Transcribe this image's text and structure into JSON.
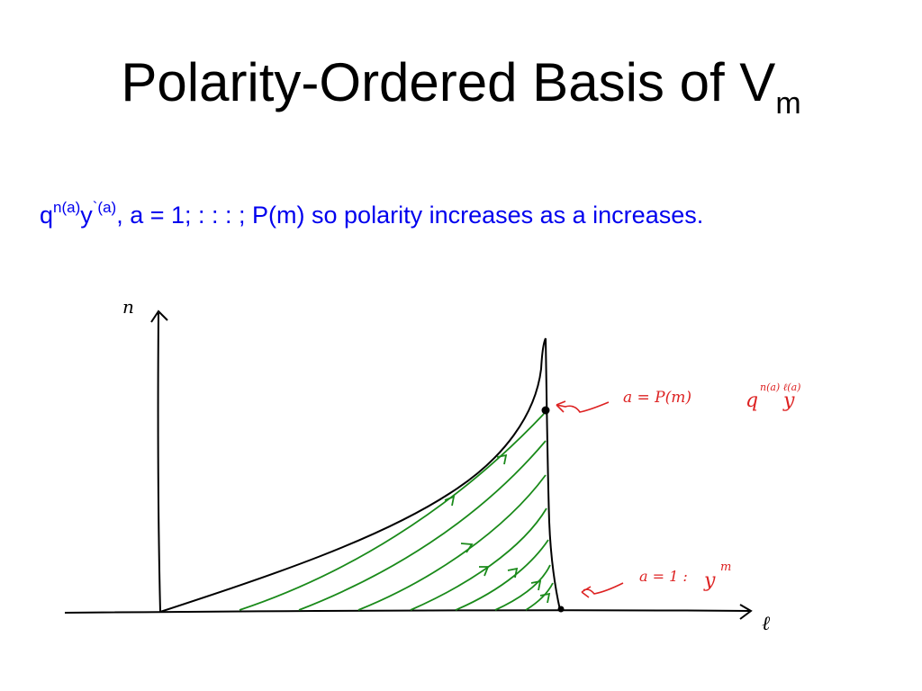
{
  "title": {
    "main": "Polarity-Ordered Basis of V",
    "subscript": "m"
  },
  "subtitle": {
    "q": "q",
    "q_exp": "n(a)",
    "y": "y",
    "y_exp": "`(a)",
    "rest": ", a = 1; : : : ; P(m) so polarity increases as a increases."
  },
  "diagram": {
    "axis_n_label": "n",
    "axis_l_label": "ℓ",
    "top_annotation": {
      "text": "a = P(m)",
      "monomial_base": "q",
      "monomial_exp": "n(a) ℓ(a)",
      "monomial_y": "y"
    },
    "bottom_annotation": {
      "text": "a = 1 :",
      "monomial": "y",
      "monomial_exp": "m"
    },
    "colors": {
      "axes": "#000000",
      "curves": "#1a8a1a",
      "annotations": "#dd2222",
      "text": "#0000ee"
    }
  }
}
